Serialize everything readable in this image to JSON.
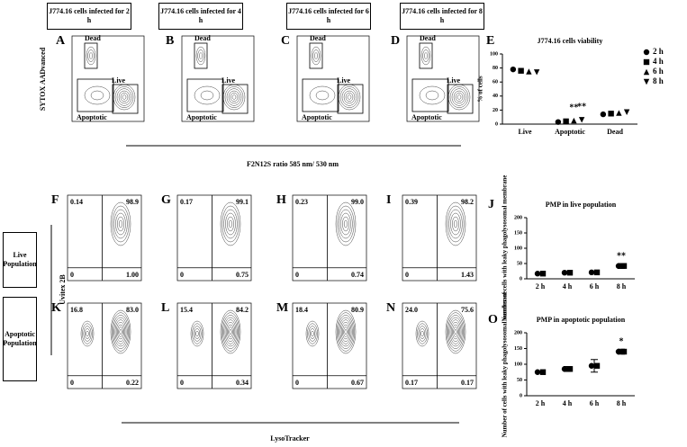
{
  "column_headers": [
    "J774.16 cells infected for 2 h",
    "J774.16 cells infected for 4 h",
    "J774.16 cells infected for 6 h",
    "J774.16 cells infected for 8 h"
  ],
  "row_labels": [
    "Live Population",
    "Apoptotic Population"
  ],
  "axis_labels": {
    "top_y": "SYTOX AADvanced",
    "top_x": "F2N12S ratio 585 nm/ 530 nm",
    "bottom_y": "Uvitex 2B",
    "bottom_x": "LysoTracker"
  },
  "top_panels": [
    {
      "letter": "A",
      "gates": [
        "Dead",
        "Live",
        "Apoptotic"
      ]
    },
    {
      "letter": "B",
      "gates": [
        "Dead",
        "Live",
        "Apoptotic"
      ]
    },
    {
      "letter": "C",
      "gates": [
        "Dead",
        "Live",
        "Apoptotic"
      ]
    },
    {
      "letter": "D",
      "gates": [
        "Dead",
        "Live",
        "Apoptotic"
      ]
    }
  ],
  "live_panels": [
    {
      "letter": "F",
      "quadrants": [
        "0.14",
        "98.9",
        "0",
        "1.00"
      ]
    },
    {
      "letter": "G",
      "quadrants": [
        "0.17",
        "99.1",
        "0",
        "0.75"
      ]
    },
    {
      "letter": "H",
      "quadrants": [
        "0.23",
        "99.0",
        "0",
        "0.74"
      ]
    },
    {
      "letter": "I",
      "quadrants": [
        "0.39",
        "98.2",
        "0",
        "1.43"
      ]
    }
  ],
  "apoptotic_panels": [
    {
      "letter": "K",
      "quadrants": [
        "16.8",
        "83.0",
        "0",
        "0.22"
      ]
    },
    {
      "letter": "L",
      "quadrants": [
        "15.4",
        "84.2",
        "0",
        "0.34"
      ]
    },
    {
      "letter": "M",
      "quadrants": [
        "18.4",
        "80.9",
        "0",
        "0.67"
      ]
    },
    {
      "letter": "N",
      "quadrants": [
        "24.0",
        "75.6",
        "0.17",
        "0.17"
      ]
    }
  ],
  "chart_data": [
    {
      "type": "dot",
      "letter": "E",
      "title": "J774.16 cells viability",
      "y_label": "% of cells",
      "categories": [
        "Live",
        "Apoptotic",
        "Dead"
      ],
      "series": [
        {
          "name": "2 h",
          "marker": "circle",
          "color": "#000000",
          "values": [
            78,
            3,
            14
          ]
        },
        {
          "name": "4 h",
          "marker": "square",
          "color": "#000000",
          "values": [
            76,
            4,
            15
          ]
        },
        {
          "name": "6 h",
          "marker": "triangle",
          "color": "#000000",
          "values": [
            75,
            5,
            16
          ]
        },
        {
          "name": "8 h",
          "marker": "triangle-down",
          "color": "#000000",
          "values": [
            74,
            6,
            17
          ]
        }
      ],
      "annotations": [
        {
          "text": "**",
          "category": 1,
          "series": 2
        },
        {
          "text": "**",
          "category": 1,
          "series": 3
        }
      ],
      "ylim": [
        0,
        100
      ],
      "yticks": [
        0,
        20,
        40,
        60,
        80,
        100
      ]
    },
    {
      "type": "dot",
      "letter": "J",
      "title": "PMP in live population",
      "y_label": "Number of cells with leaky phagolysosomal membrane",
      "categories": [
        "2 h",
        "4 h",
        "6 h",
        "8 h"
      ],
      "values": [
        17,
        20,
        21,
        42
      ],
      "errors": [
        2,
        4,
        3,
        8
      ],
      "color": "#000000",
      "annotations": [
        {
          "text": "**",
          "category": 3
        }
      ],
      "ylim": [
        0,
        200
      ],
      "yticks": [
        0,
        50,
        100,
        150,
        200
      ]
    },
    {
      "type": "dot",
      "letter": "O",
      "title": "PMP in apoptotic population",
      "y_label": "Number of cells with leaky phagolysosomal membrane",
      "categories": [
        "2 h",
        "4 h",
        "6 h",
        "8 h"
      ],
      "values": [
        75,
        85,
        95,
        140
      ],
      "errors": [
        2,
        8,
        20,
        8
      ],
      "color": "#000000",
      "annotations": [
        {
          "text": "*",
          "category": 3
        }
      ],
      "ylim": [
        0,
        200
      ],
      "yticks": [
        0,
        50,
        100,
        150,
        200
      ]
    }
  ]
}
